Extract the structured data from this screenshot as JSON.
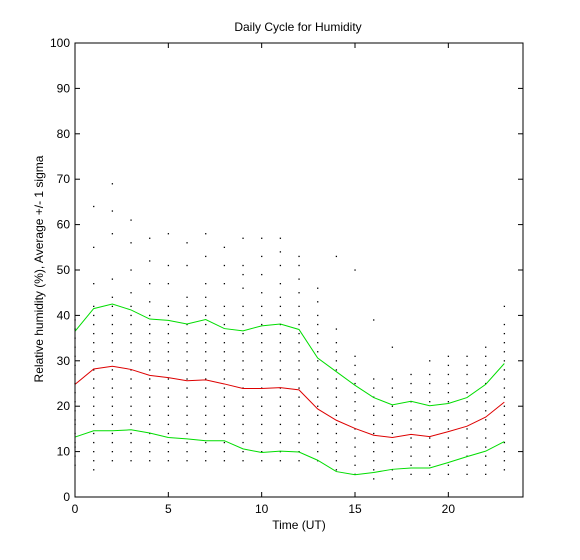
{
  "chart_data": {
    "type": "line",
    "title": "Daily Cycle for Humidity",
    "xlabel": "Time (UT)",
    "ylabel": "Relative humidity (%), Average +/- 1 sigma",
    "xlim": [
      0,
      24
    ],
    "ylim": [
      0,
      100
    ],
    "xticks": [
      0,
      5,
      10,
      15,
      20
    ],
    "yticks": [
      0,
      10,
      20,
      30,
      40,
      50,
      60,
      70,
      80,
      90,
      100
    ],
    "grid": false,
    "x": [
      0,
      1,
      2,
      3,
      4,
      5,
      6,
      7,
      8,
      9,
      10,
      11,
      12,
      13,
      14,
      15,
      16,
      17,
      18,
      19,
      20,
      21,
      22,
      23
    ],
    "series": [
      {
        "color": "#00dd00",
        "values": [
          36.5,
          41.5,
          42.5,
          41.2,
          39.2,
          38.9,
          38.1,
          39.1,
          37.1,
          36.6,
          37.7,
          38.1,
          36.9,
          30.6,
          27.6,
          24.6,
          21.9,
          20.3,
          21.1,
          20.1,
          20.6,
          21.9,
          24.8,
          29.4
        ]
      },
      {
        "color": "#dd0000",
        "values": [
          24.8,
          28.2,
          28.8,
          28.1,
          26.8,
          26.3,
          25.6,
          25.8,
          24.9,
          23.9,
          23.9,
          24.1,
          23.6,
          19.4,
          16.9,
          15.1,
          13.6,
          13.1,
          13.8,
          13.3,
          14.4,
          15.6,
          17.6,
          20.9
        ]
      },
      {
        "color": "#00dd00",
        "values": [
          13.2,
          14.6,
          14.6,
          14.8,
          14.1,
          13.1,
          12.8,
          12.4,
          12.4,
          10.6,
          9.8,
          10.1,
          9.9,
          8.1,
          5.6,
          4.9,
          5.4,
          6.1,
          6.4,
          6.4,
          7.6,
          8.9,
          10.1,
          12.2
        ]
      }
    ],
    "scatter_color": "#000000",
    "scatter": [
      [
        0,
        7
      ],
      [
        0,
        9
      ],
      [
        0,
        11
      ],
      [
        0,
        12
      ],
      [
        0,
        14
      ],
      [
        0,
        16
      ],
      [
        0,
        17
      ],
      [
        0,
        19
      ],
      [
        0,
        21
      ],
      [
        0,
        23
      ],
      [
        0,
        25
      ],
      [
        0,
        27
      ],
      [
        0,
        29
      ],
      [
        0,
        31
      ],
      [
        0,
        33
      ],
      [
        0,
        35
      ],
      [
        0,
        37
      ],
      [
        0,
        39
      ],
      [
        1,
        6
      ],
      [
        1,
        8
      ],
      [
        1,
        10
      ],
      [
        1,
        12
      ],
      [
        1,
        14
      ],
      [
        1,
        16
      ],
      [
        1,
        18
      ],
      [
        1,
        20
      ],
      [
        1,
        22
      ],
      [
        1,
        24
      ],
      [
        1,
        26
      ],
      [
        1,
        28
      ],
      [
        1,
        30
      ],
      [
        1,
        32
      ],
      [
        1,
        34
      ],
      [
        1,
        36
      ],
      [
        1,
        38
      ],
      [
        1,
        40
      ],
      [
        1,
        42
      ],
      [
        1,
        47
      ],
      [
        1,
        55
      ],
      [
        1,
        64
      ],
      [
        2,
        8
      ],
      [
        2,
        10
      ],
      [
        2,
        12
      ],
      [
        2,
        14
      ],
      [
        2,
        16
      ],
      [
        2,
        18
      ],
      [
        2,
        20
      ],
      [
        2,
        22
      ],
      [
        2,
        24
      ],
      [
        2,
        26
      ],
      [
        2,
        28
      ],
      [
        2,
        30
      ],
      [
        2,
        32
      ],
      [
        2,
        34
      ],
      [
        2,
        36
      ],
      [
        2,
        38
      ],
      [
        2,
        40
      ],
      [
        2,
        42
      ],
      [
        2,
        44
      ],
      [
        2,
        48
      ],
      [
        2,
        58
      ],
      [
        2,
        63
      ],
      [
        2,
        69
      ],
      [
        3,
        8
      ],
      [
        3,
        10
      ],
      [
        3,
        12
      ],
      [
        3,
        14
      ],
      [
        3,
        16
      ],
      [
        3,
        18
      ],
      [
        3,
        20
      ],
      [
        3,
        22
      ],
      [
        3,
        24
      ],
      [
        3,
        26
      ],
      [
        3,
        28
      ],
      [
        3,
        30
      ],
      [
        3,
        32
      ],
      [
        3,
        34
      ],
      [
        3,
        36
      ],
      [
        3,
        38
      ],
      [
        3,
        40
      ],
      [
        3,
        42
      ],
      [
        3,
        45
      ],
      [
        3,
        50
      ],
      [
        3,
        56
      ],
      [
        3,
        61
      ],
      [
        4,
        8
      ],
      [
        4,
        10
      ],
      [
        4,
        12
      ],
      [
        4,
        14
      ],
      [
        4,
        16
      ],
      [
        4,
        18
      ],
      [
        4,
        20
      ],
      [
        4,
        22
      ],
      [
        4,
        24
      ],
      [
        4,
        26
      ],
      [
        4,
        28
      ],
      [
        4,
        30
      ],
      [
        4,
        32
      ],
      [
        4,
        34
      ],
      [
        4,
        36
      ],
      [
        4,
        38
      ],
      [
        4,
        40
      ],
      [
        4,
        43
      ],
      [
        4,
        47
      ],
      [
        4,
        52
      ],
      [
        4,
        57
      ],
      [
        5,
        8
      ],
      [
        5,
        10
      ],
      [
        5,
        12
      ],
      [
        5,
        14
      ],
      [
        5,
        16
      ],
      [
        5,
        18
      ],
      [
        5,
        20
      ],
      [
        5,
        22
      ],
      [
        5,
        24
      ],
      [
        5,
        26
      ],
      [
        5,
        28
      ],
      [
        5,
        30
      ],
      [
        5,
        32
      ],
      [
        5,
        34
      ],
      [
        5,
        36
      ],
      [
        5,
        38
      ],
      [
        5,
        40
      ],
      [
        5,
        42
      ],
      [
        5,
        47
      ],
      [
        5,
        51
      ],
      [
        5,
        58
      ],
      [
        6,
        8
      ],
      [
        6,
        10
      ],
      [
        6,
        12
      ],
      [
        6,
        14
      ],
      [
        6,
        16
      ],
      [
        6,
        18
      ],
      [
        6,
        20
      ],
      [
        6,
        22
      ],
      [
        6,
        24
      ],
      [
        6,
        26
      ],
      [
        6,
        28
      ],
      [
        6,
        30
      ],
      [
        6,
        32
      ],
      [
        6,
        34
      ],
      [
        6,
        36
      ],
      [
        6,
        38
      ],
      [
        6,
        40
      ],
      [
        6,
        42
      ],
      [
        6,
        44
      ],
      [
        6,
        51
      ],
      [
        6,
        56
      ],
      [
        7,
        8
      ],
      [
        7,
        10
      ],
      [
        7,
        12
      ],
      [
        7,
        14
      ],
      [
        7,
        16
      ],
      [
        7,
        18
      ],
      [
        7,
        20
      ],
      [
        7,
        22
      ],
      [
        7,
        24
      ],
      [
        7,
        26
      ],
      [
        7,
        28
      ],
      [
        7,
        30
      ],
      [
        7,
        32
      ],
      [
        7,
        34
      ],
      [
        7,
        36
      ],
      [
        7,
        38
      ],
      [
        7,
        40
      ],
      [
        7,
        42
      ],
      [
        7,
        44
      ],
      [
        7,
        47
      ],
      [
        7,
        53
      ],
      [
        7,
        58
      ],
      [
        8,
        8
      ],
      [
        8,
        10
      ],
      [
        8,
        12
      ],
      [
        8,
        14
      ],
      [
        8,
        16
      ],
      [
        8,
        18
      ],
      [
        8,
        20
      ],
      [
        8,
        22
      ],
      [
        8,
        24
      ],
      [
        8,
        26
      ],
      [
        8,
        28
      ],
      [
        8,
        30
      ],
      [
        8,
        32
      ],
      [
        8,
        34
      ],
      [
        8,
        36
      ],
      [
        8,
        38
      ],
      [
        8,
        40
      ],
      [
        8,
        42
      ],
      [
        8,
        47
      ],
      [
        8,
        51
      ],
      [
        8,
        55
      ],
      [
        9,
        8
      ],
      [
        9,
        10
      ],
      [
        9,
        12
      ],
      [
        9,
        14
      ],
      [
        9,
        16
      ],
      [
        9,
        18
      ],
      [
        9,
        20
      ],
      [
        9,
        22
      ],
      [
        9,
        24
      ],
      [
        9,
        26
      ],
      [
        9,
        28
      ],
      [
        9,
        30
      ],
      [
        9,
        32
      ],
      [
        9,
        34
      ],
      [
        9,
        36
      ],
      [
        9,
        38
      ],
      [
        9,
        40
      ],
      [
        9,
        42
      ],
      [
        9,
        46
      ],
      [
        9,
        49
      ],
      [
        9,
        51
      ],
      [
        9,
        57
      ],
      [
        10,
        8
      ],
      [
        10,
        10
      ],
      [
        10,
        12
      ],
      [
        10,
        14
      ],
      [
        10,
        16
      ],
      [
        10,
        18
      ],
      [
        10,
        20
      ],
      [
        10,
        22
      ],
      [
        10,
        24
      ],
      [
        10,
        26
      ],
      [
        10,
        28
      ],
      [
        10,
        30
      ],
      [
        10,
        32
      ],
      [
        10,
        34
      ],
      [
        10,
        36
      ],
      [
        10,
        38
      ],
      [
        10,
        40
      ],
      [
        10,
        42
      ],
      [
        10,
        45
      ],
      [
        10,
        49
      ],
      [
        10,
        53
      ],
      [
        10,
        57
      ],
      [
        11,
        8
      ],
      [
        11,
        10
      ],
      [
        11,
        12
      ],
      [
        11,
        14
      ],
      [
        11,
        16
      ],
      [
        11,
        18
      ],
      [
        11,
        20
      ],
      [
        11,
        22
      ],
      [
        11,
        24
      ],
      [
        11,
        26
      ],
      [
        11,
        28
      ],
      [
        11,
        30
      ],
      [
        11,
        32
      ],
      [
        11,
        34
      ],
      [
        11,
        36
      ],
      [
        11,
        38
      ],
      [
        11,
        40
      ],
      [
        11,
        42
      ],
      [
        11,
        44
      ],
      [
        11,
        47
      ],
      [
        11,
        51
      ],
      [
        11,
        54
      ],
      [
        11,
        57
      ],
      [
        12,
        8
      ],
      [
        12,
        10
      ],
      [
        12,
        12
      ],
      [
        12,
        14
      ],
      [
        12,
        16
      ],
      [
        12,
        18
      ],
      [
        12,
        20
      ],
      [
        12,
        22
      ],
      [
        12,
        24
      ],
      [
        12,
        26
      ],
      [
        12,
        28
      ],
      [
        12,
        30
      ],
      [
        12,
        32
      ],
      [
        12,
        34
      ],
      [
        12,
        36
      ],
      [
        12,
        38
      ],
      [
        12,
        40
      ],
      [
        12,
        42
      ],
      [
        12,
        45
      ],
      [
        12,
        48
      ],
      [
        12,
        51
      ],
      [
        12,
        53
      ],
      [
        13,
        8
      ],
      [
        13,
        10
      ],
      [
        13,
        12
      ],
      [
        13,
        14
      ],
      [
        13,
        16
      ],
      [
        13,
        18
      ],
      [
        13,
        20
      ],
      [
        13,
        22
      ],
      [
        13,
        24
      ],
      [
        13,
        26
      ],
      [
        13,
        28
      ],
      [
        13,
        30
      ],
      [
        13,
        32
      ],
      [
        13,
        34
      ],
      [
        13,
        36
      ],
      [
        13,
        38
      ],
      [
        13,
        40
      ],
      [
        13,
        43
      ],
      [
        13,
        46
      ],
      [
        14,
        6
      ],
      [
        14,
        8
      ],
      [
        14,
        10
      ],
      [
        14,
        12
      ],
      [
        14,
        14
      ],
      [
        14,
        16
      ],
      [
        14,
        18
      ],
      [
        14,
        20
      ],
      [
        14,
        22
      ],
      [
        14,
        24
      ],
      [
        14,
        26
      ],
      [
        14,
        28
      ],
      [
        14,
        30
      ],
      [
        14,
        32
      ],
      [
        14,
        34
      ],
      [
        14,
        37
      ],
      [
        14,
        53
      ],
      [
        15,
        5
      ],
      [
        15,
        7
      ],
      [
        15,
        9
      ],
      [
        15,
        11
      ],
      [
        15,
        13
      ],
      [
        15,
        15
      ],
      [
        15,
        17
      ],
      [
        15,
        19
      ],
      [
        15,
        21
      ],
      [
        15,
        23
      ],
      [
        15,
        25
      ],
      [
        15,
        27
      ],
      [
        15,
        29
      ],
      [
        15,
        31
      ],
      [
        15,
        50
      ],
      [
        16,
        4
      ],
      [
        16,
        6
      ],
      [
        16,
        8
      ],
      [
        16,
        10
      ],
      [
        16,
        12
      ],
      [
        16,
        14
      ],
      [
        16,
        16
      ],
      [
        16,
        18
      ],
      [
        16,
        20
      ],
      [
        16,
        22
      ],
      [
        16,
        24
      ],
      [
        16,
        26
      ],
      [
        16,
        39
      ],
      [
        17,
        4
      ],
      [
        17,
        6
      ],
      [
        17,
        8
      ],
      [
        17,
        10
      ],
      [
        17,
        12
      ],
      [
        17,
        14
      ],
      [
        17,
        16
      ],
      [
        17,
        18
      ],
      [
        17,
        20
      ],
      [
        17,
        22
      ],
      [
        17,
        24
      ],
      [
        17,
        26
      ],
      [
        17,
        33
      ],
      [
        18,
        5
      ],
      [
        18,
        7
      ],
      [
        18,
        9
      ],
      [
        18,
        11
      ],
      [
        18,
        13
      ],
      [
        18,
        15
      ],
      [
        18,
        17
      ],
      [
        18,
        19
      ],
      [
        18,
        21
      ],
      [
        18,
        23
      ],
      [
        18,
        25
      ],
      [
        18,
        27
      ],
      [
        19,
        5
      ],
      [
        19,
        7
      ],
      [
        19,
        9
      ],
      [
        19,
        11
      ],
      [
        19,
        13
      ],
      [
        19,
        15
      ],
      [
        19,
        17
      ],
      [
        19,
        19
      ],
      [
        19,
        21
      ],
      [
        19,
        23
      ],
      [
        19,
        25
      ],
      [
        19,
        27
      ],
      [
        19,
        30
      ],
      [
        20,
        5
      ],
      [
        20,
        7
      ],
      [
        20,
        9
      ],
      [
        20,
        11
      ],
      [
        20,
        13
      ],
      [
        20,
        15
      ],
      [
        20,
        17
      ],
      [
        20,
        19
      ],
      [
        20,
        21
      ],
      [
        20,
        23
      ],
      [
        20,
        25
      ],
      [
        20,
        27
      ],
      [
        20,
        29
      ],
      [
        20,
        31
      ],
      [
        21,
        5
      ],
      [
        21,
        7
      ],
      [
        21,
        9
      ],
      [
        21,
        11
      ],
      [
        21,
        13
      ],
      [
        21,
        15
      ],
      [
        21,
        17
      ],
      [
        21,
        19
      ],
      [
        21,
        21
      ],
      [
        21,
        23
      ],
      [
        21,
        25
      ],
      [
        21,
        27
      ],
      [
        21,
        29
      ],
      [
        21,
        31
      ],
      [
        22,
        5
      ],
      [
        22,
        7
      ],
      [
        22,
        9
      ],
      [
        22,
        11
      ],
      [
        22,
        13
      ],
      [
        22,
        15
      ],
      [
        22,
        17
      ],
      [
        22,
        19
      ],
      [
        22,
        21
      ],
      [
        22,
        23
      ],
      [
        22,
        25
      ],
      [
        22,
        27
      ],
      [
        22,
        29
      ],
      [
        22,
        31
      ],
      [
        22,
        33
      ],
      [
        23,
        6
      ],
      [
        23,
        8
      ],
      [
        23,
        10
      ],
      [
        23,
        12
      ],
      [
        23,
        14
      ],
      [
        23,
        16
      ],
      [
        23,
        18
      ],
      [
        23,
        20
      ],
      [
        23,
        22
      ],
      [
        23,
        24
      ],
      [
        23,
        26
      ],
      [
        23,
        28
      ],
      [
        23,
        30
      ],
      [
        23,
        32
      ],
      [
        23,
        34
      ],
      [
        23,
        36
      ],
      [
        23,
        38
      ],
      [
        23,
        42
      ]
    ]
  }
}
